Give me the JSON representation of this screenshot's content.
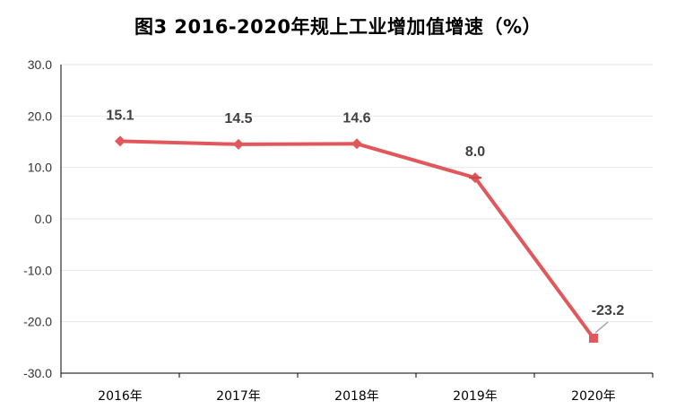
{
  "chart_data": {
    "type": "line",
    "title": "图3  2016-2020年规上工业增加值增速（%）",
    "categories": [
      "2016年",
      "2017年",
      "2018年",
      "2019年",
      "2020年"
    ],
    "series": [
      {
        "values": [
          15.1,
          14.5,
          14.6,
          8.0,
          -23.2
        ]
      }
    ],
    "data_labels": [
      "15.1",
      "14.5",
      "14.6",
      "8.0",
      "-23.2"
    ],
    "yticks": [
      "30.0",
      "20.0",
      "10.0",
      "0.0",
      "-10.0",
      "-20.0",
      "-30.0"
    ],
    "ylim": [
      -30,
      30
    ],
    "grid": true,
    "legend": "none",
    "colors": {
      "line": "#e0575c",
      "grid": "#e6e6e6",
      "axis": "#000000",
      "text": "#404040"
    }
  }
}
